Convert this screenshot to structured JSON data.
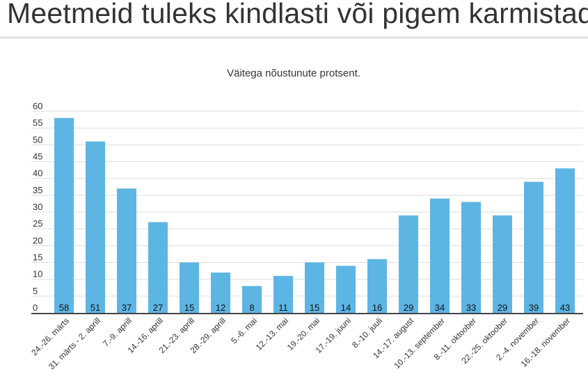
{
  "header": {
    "title": "Meetmeid tuleks kindlasti või pigem karmistada"
  },
  "chart_data": {
    "type": "bar",
    "title": "Väitega nõustunute protsent.",
    "xlabel": "",
    "ylabel": "",
    "ylim": [
      0,
      60
    ],
    "yticks": [
      0,
      5,
      10,
      15,
      20,
      25,
      30,
      35,
      40,
      45,
      50,
      55,
      60
    ],
    "grid": true,
    "color": "#5db5e4",
    "categories": [
      "24.-26. märts",
      "31. märts - 2. aprill",
      "7.-9. aprill",
      "14.-16. aprill",
      "21.-23. aprill",
      "28.-29. aprill",
      "5.-6. mai",
      "12.-13. mai",
      "19.-20. mai",
      "17.-19. juuni",
      "8.-10. juuli",
      "14.-17. august",
      "10.-13. september",
      "8.-11. oktoober",
      "22.-25. oktoober",
      "2.-4. november",
      "16.-18. november"
    ],
    "values": [
      58,
      51,
      37,
      27,
      15,
      12,
      8,
      11,
      15,
      14,
      16,
      29,
      34,
      33,
      29,
      39,
      43
    ]
  }
}
